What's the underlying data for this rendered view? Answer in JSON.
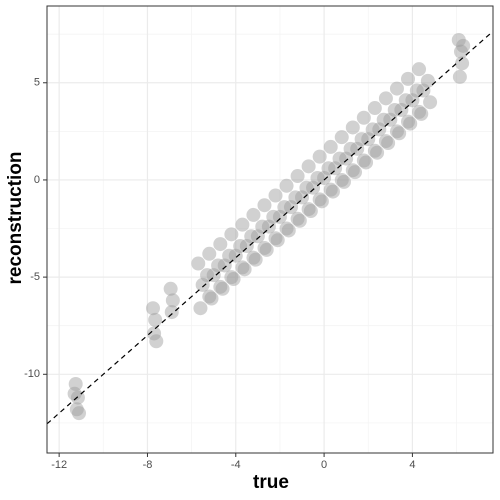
{
  "chart_data": {
    "type": "scatter",
    "x_label": "true",
    "y_label": "reconstruction",
    "xlim": [
      -12.55,
      7.65
    ],
    "ylim": [
      -14.05,
      8.95
    ],
    "xticks": [
      -12,
      -8,
      -4,
      0,
      4
    ],
    "yticks": [
      5,
      0,
      -5,
      -10
    ],
    "xminor": [
      -10,
      -6,
      -2,
      2,
      6
    ],
    "yminor": [
      7.5,
      2.5,
      -2.5,
      -7.5,
      -12.5
    ],
    "grid": true,
    "identity_line": true,
    "color": "#999999",
    "x": [
      -5.6,
      -5.3,
      -5.5,
      -5.2,
      -5.7,
      -5.1,
      -4.8,
      -5,
      -4.7,
      -5.2,
      -4.6,
      -4.3,
      -4.5,
      -4.2,
      -4.7,
      -4.1,
      -3.8,
      -4,
      -3.7,
      -4.2,
      -3.6,
      -3.3,
      -3.5,
      -3.2,
      -3.7,
      -3.1,
      -2.8,
      -3,
      -2.7,
      -3.2,
      -2.6,
      -2.3,
      -2.5,
      -2.2,
      -2.7,
      -2.1,
      -1.8,
      -2,
      -1.7,
      -2.2,
      -1.6,
      -1.3,
      -1.5,
      -1.2,
      -1.7,
      -1.1,
      -0.8,
      -1,
      -0.7,
      -1.2,
      -0.6,
      -0.3,
      -0.5,
      -0.2,
      -0.7,
      -0.1,
      0.2,
      0,
      0.3,
      -0.2,
      0.4,
      0.7,
      0.5,
      0.8,
      0.3,
      0.9,
      1.2,
      1,
      1.3,
      0.8,
      1.4,
      1.7,
      1.5,
      1.8,
      1.3,
      1.9,
      2.2,
      2,
      2.3,
      1.8,
      2.4,
      2.7,
      2.5,
      2.8,
      2.3,
      2.9,
      3.2,
      3,
      3.3,
      2.8,
      3.4,
      3.7,
      3.5,
      3.8,
      3.3,
      3.9,
      4.2,
      4,
      4.3,
      3.8,
      4.4,
      4.7,
      4.5,
      4.8,
      4.3,
      -11.25,
      -11.15,
      -11.2,
      -11.1,
      -11.3,
      -7.75,
      -7.65,
      -7.7,
      -7.6,
      -6.95,
      -6.85,
      -6.9,
      6.15,
      6.25,
      6.2,
      6.1,
      6.3
    ],
    "y": [
      -6.6,
      -4.9,
      -5.4,
      -6,
      -4.3,
      -6.1,
      -4.4,
      -4.9,
      -5.5,
      -3.8,
      -5.6,
      -3.9,
      -4.4,
      -5,
      -3.3,
      -5.1,
      -3.4,
      -3.9,
      -4.5,
      -2.8,
      -4.6,
      -2.9,
      -3.4,
      -4,
      -2.3,
      -4.1,
      -2.4,
      -2.9,
      -3.5,
      -1.8,
      -3.6,
      -1.9,
      -2.4,
      -3,
      -1.3,
      -3.1,
      -1.4,
      -1.9,
      -2.5,
      -0.8,
      -2.6,
      -0.9,
      -1.4,
      -2,
      -0.3,
      -2.1,
      -0.4,
      -0.9,
      -1.5,
      0.2,
      -1.6,
      0.1,
      -0.4,
      -1,
      0.7,
      -1.1,
      0.6,
      0.1,
      -0.5,
      1.2,
      -0.6,
      1.1,
      0.6,
      0,
      1.7,
      -0.1,
      1.6,
      1.1,
      0.5,
      2.2,
      0.4,
      2.1,
      1.6,
      1,
      2.7,
      0.9,
      2.6,
      2.1,
      1.5,
      3.2,
      1.4,
      3.1,
      2.6,
      2,
      3.7,
      1.9,
      3.6,
      3.1,
      2.5,
      4.2,
      2.4,
      4.1,
      3.6,
      3,
      4.7,
      2.9,
      4.6,
      4.1,
      3.5,
      5.2,
      3.4,
      5.1,
      4.6,
      4,
      5.7,
      -10.5,
      -11.2,
      -11.8,
      -12,
      -11,
      -6.6,
      -7.2,
      -7.9,
      -8.3,
      -5.6,
      -6.2,
      -6.8,
      5.3,
      6,
      6.6,
      7.2,
      6.9
    ]
  }
}
